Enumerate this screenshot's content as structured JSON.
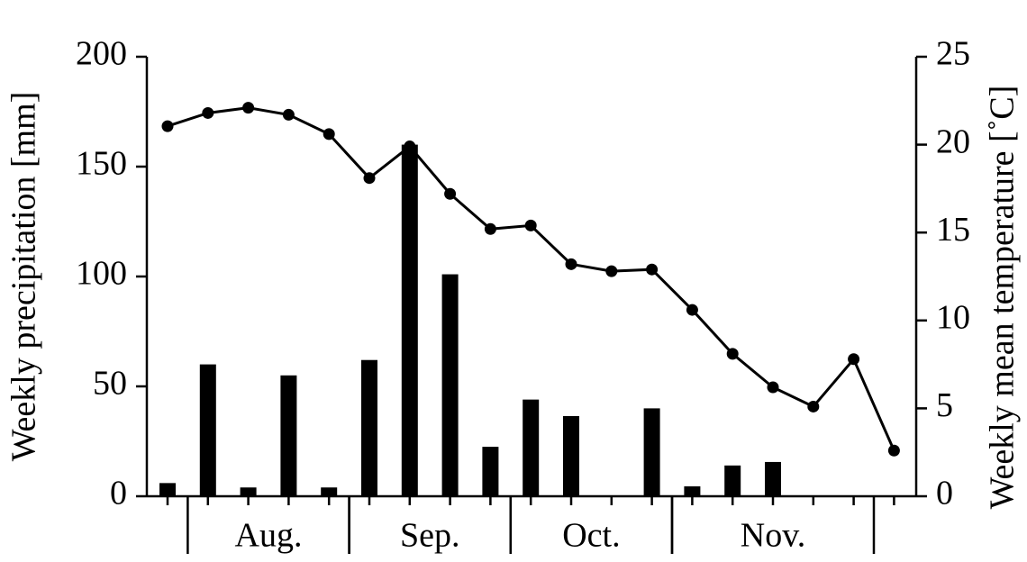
{
  "chart_data": {
    "type": "bar-line",
    "y_label": "Weekly precipitation [mm]",
    "y2_label": "Weekly mean temperature [˚C]",
    "categories": [
      null,
      null,
      null,
      null,
      null,
      null,
      null,
      null,
      null,
      null,
      null,
      null,
      null,
      null,
      null,
      null,
      null,
      null,
      null
    ],
    "series": [
      {
        "name": "Weekly precipitation",
        "type": "bar",
        "color": "#000000",
        "axis": "y",
        "values": [
          6,
          60,
          4,
          55,
          4,
          62,
          160,
          101,
          22.5,
          44,
          36.5,
          0,
          40,
          4.5,
          14,
          15.6,
          0,
          0,
          0
        ]
      },
      {
        "name": "Weekly mean temperature",
        "type": "line",
        "color": "#000000",
        "axis": "y2",
        "values": [
          21.05,
          21.8,
          22.1,
          21.7,
          20.6,
          18.1,
          19.9,
          17.2,
          15.2,
          15.4,
          13.2,
          12.8,
          12.9,
          10.6,
          8.1,
          6.2,
          5.1,
          7.8,
          2.6
        ]
      }
    ],
    "x_groups": [
      {
        "label": "Aug.",
        "from": 1,
        "to": 4
      },
      {
        "label": "Sep.",
        "from": 5,
        "to": 8
      },
      {
        "label": "Oct.",
        "from": 9,
        "to": 12
      },
      {
        "label": "Nov.",
        "from": 13,
        "to": 17
      }
    ],
    "ylim": [
      0,
      200
    ],
    "yticks": [
      0,
      50,
      100,
      150,
      200
    ],
    "y2lim": [
      0,
      25
    ],
    "y2ticks": [
      0,
      5,
      10,
      15,
      20,
      25
    ],
    "grid": false
  }
}
